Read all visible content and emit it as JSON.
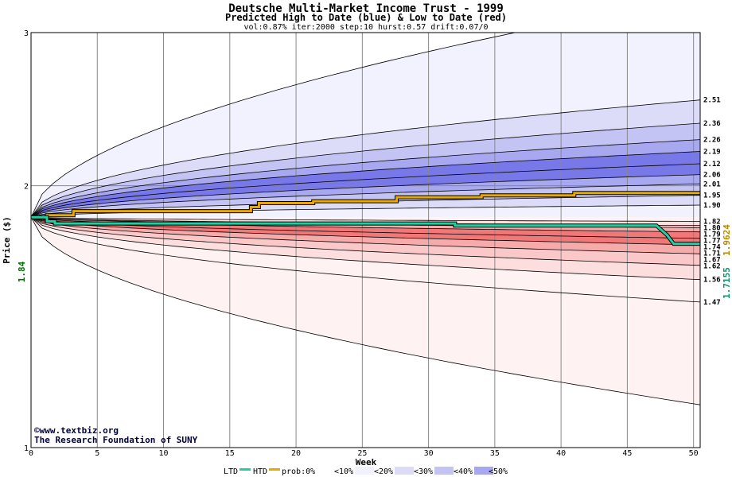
{
  "header": {
    "title": "Deutsche Multi-Market Income Trust - 1999",
    "subtitle": "Predicted High to Date (blue) &  Low to Date (red)",
    "params": "vol:0.87% iter:2000 step:10 hurst:0.57 drift:0.07/0"
  },
  "credit": {
    "line1": "©www.textbiz.org",
    "line2": "The Research Foundation of SUNY"
  },
  "colors": {
    "htd": "#e8a800",
    "ltd": "#20d0a0",
    "blue_bands": [
      "#f2f2ff",
      "#dcdcf8",
      "#c4c4f4",
      "#a8a8f0",
      "#7878e8"
    ],
    "red_bands": [
      "#fff2f2",
      "#fcdede",
      "#fac8c8",
      "#f6aaaa",
      "#f07878"
    ]
  },
  "chart_data": {
    "type": "line",
    "title": "Deutsche Multi-Market Income Trust - 1999",
    "xlabel": "Week",
    "ylabel": "Price ($)",
    "xlim": [
      0,
      50.5
    ],
    "ylim": [
      1,
      3
    ],
    "ylog": true,
    "grid": true,
    "x_ticks": [
      "0",
      "5",
      "10",
      "15",
      "20",
      "25",
      "30",
      "35",
      "40",
      "45",
      "50"
    ],
    "y_ticks": [
      "1",
      "2",
      "3"
    ],
    "start_price": "1.84",
    "htd_final": "1.9624",
    "ltd_final": "1.7155",
    "upper_percentile_labels": [
      "2.51",
      "2.36",
      "2.26",
      "2.19",
      "2.12",
      "2.06",
      "2.01",
      "1.95",
      "1.90"
    ],
    "lower_percentile_labels": [
      "1.82",
      "1.80",
      "1.79",
      "1.77",
      "1.74",
      "1.71",
      "1.67",
      "1.62",
      "1.56",
      "1.47"
    ],
    "upper_curves": [
      2.51,
      2.36,
      2.26,
      2.19,
      2.12,
      2.06,
      2.01,
      1.95,
      1.9
    ],
    "upper_curve_bands": [
      0,
      1,
      2,
      3,
      4,
      4,
      3,
      2,
      1
    ],
    "upper_outer": 3.3,
    "lower_curves": [
      1.82,
      1.8,
      1.79,
      1.77,
      1.74,
      1.71,
      1.67,
      1.62,
      1.56,
      1.47
    ],
    "lower_curve_bands": [
      1,
      2,
      3,
      4,
      4,
      3,
      2,
      1,
      0,
      0
    ],
    "lower_outer": 1.12,
    "htd_series": {
      "x": [
        0,
        1.2,
        1.2,
        3.2,
        3.2,
        16.6,
        16.6,
        17.2,
        17.2,
        21.3,
        21.3,
        27.6,
        27.6,
        34,
        34,
        41,
        41,
        50.5
      ],
      "y": [
        1.84,
        1.84,
        1.85,
        1.85,
        1.87,
        1.87,
        1.89,
        1.89,
        1.91,
        1.91,
        1.92,
        1.92,
        1.94,
        1.94,
        1.95,
        1.95,
        1.9624,
        1.9624
      ]
    },
    "ltd_series": {
      "x": [
        0,
        1.2,
        1.2,
        1.8,
        1.8,
        32,
        32,
        47.2,
        48,
        48.5,
        50.5
      ],
      "y": [
        1.84,
        1.84,
        1.82,
        1.82,
        1.81,
        1.81,
        1.8,
        1.8,
        1.755,
        1.7155,
        1.7155
      ]
    },
    "legend": {
      "ltd": "LTD",
      "htd": "HTD",
      "prob": "prob:0%",
      "items": [
        "<10%",
        "<20%",
        "<30%",
        "<40%",
        "<50%"
      ]
    }
  }
}
